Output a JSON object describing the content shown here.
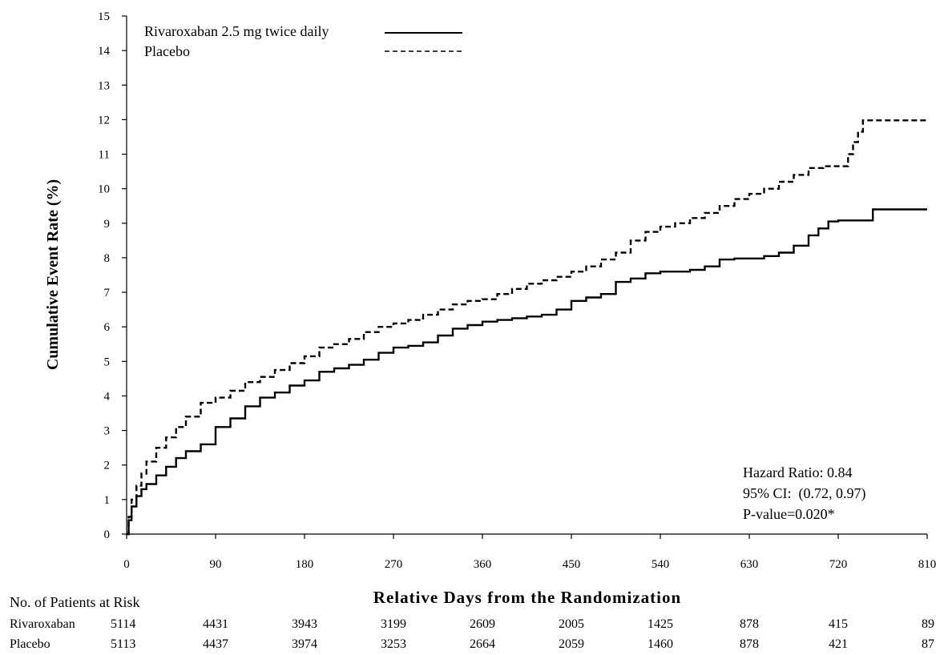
{
  "chart_data": {
    "type": "line",
    "title": "",
    "xlabel": "Relative Days from the Randomization",
    "ylabel": "Cumulative Event Rate (%)",
    "xlim": [
      0,
      810
    ],
    "ylim": [
      0,
      15
    ],
    "x_ticks": [
      0,
      90,
      180,
      270,
      360,
      450,
      540,
      630,
      720,
      810
    ],
    "y_ticks": [
      0,
      1,
      2,
      3,
      4,
      5,
      6,
      7,
      8,
      9,
      10,
      11,
      12,
      13,
      14,
      15
    ],
    "grid": false,
    "legend_position": "top-left",
    "series": [
      {
        "name": "Rivaroxaban 2.5 mg twice daily",
        "line_style": "solid",
        "color": "#000000",
        "x": [
          0,
          2,
          5,
          10,
          15,
          20,
          30,
          40,
          50,
          60,
          75,
          90,
          105,
          120,
          135,
          150,
          165,
          180,
          195,
          210,
          225,
          240,
          255,
          270,
          285,
          300,
          315,
          330,
          345,
          360,
          375,
          390,
          405,
          420,
          435,
          450,
          465,
          480,
          495,
          510,
          525,
          540,
          555,
          570,
          585,
          600,
          615,
          630,
          645,
          660,
          675,
          690,
          700,
          710,
          720,
          740,
          755,
          770,
          810
        ],
        "y": [
          0,
          0.4,
          0.8,
          1.1,
          1.3,
          1.45,
          1.7,
          1.95,
          2.2,
          2.4,
          2.6,
          3.1,
          3.35,
          3.7,
          3.95,
          4.1,
          4.3,
          4.45,
          4.7,
          4.8,
          4.9,
          5.05,
          5.25,
          5.4,
          5.45,
          5.55,
          5.75,
          5.95,
          6.05,
          6.15,
          6.2,
          6.25,
          6.3,
          6.35,
          6.5,
          6.75,
          6.85,
          6.95,
          7.3,
          7.4,
          7.55,
          7.6,
          7.6,
          7.65,
          7.75,
          7.95,
          7.98,
          7.98,
          8.05,
          8.15,
          8.35,
          8.65,
          8.85,
          9.05,
          9.08,
          9.08,
          9.4,
          9.4,
          9.4
        ]
      },
      {
        "name": "Placebo",
        "line_style": "dashed",
        "color": "#000000",
        "x": [
          0,
          2,
          5,
          10,
          15,
          20,
          30,
          40,
          50,
          60,
          75,
          90,
          105,
          120,
          135,
          150,
          165,
          180,
          195,
          210,
          225,
          240,
          255,
          270,
          285,
          300,
          315,
          330,
          345,
          360,
          375,
          390,
          405,
          420,
          435,
          450,
          465,
          480,
          495,
          510,
          525,
          540,
          555,
          570,
          585,
          600,
          615,
          630,
          645,
          660,
          675,
          690,
          705,
          720,
          730,
          735,
          740,
          745,
          760,
          810
        ],
        "y": [
          0,
          0.5,
          1.0,
          1.4,
          1.75,
          2.1,
          2.5,
          2.8,
          3.1,
          3.4,
          3.8,
          3.95,
          4.15,
          4.4,
          4.55,
          4.75,
          4.95,
          5.15,
          5.4,
          5.5,
          5.65,
          5.85,
          6.0,
          6.1,
          6.2,
          6.35,
          6.5,
          6.65,
          6.75,
          6.8,
          6.95,
          7.1,
          7.25,
          7.35,
          7.45,
          7.6,
          7.75,
          7.95,
          8.15,
          8.5,
          8.75,
          8.9,
          9.0,
          9.15,
          9.3,
          9.5,
          9.7,
          9.85,
          10.0,
          10.2,
          10.4,
          10.6,
          10.65,
          10.65,
          11.0,
          11.35,
          11.65,
          11.98,
          11.98,
          11.98
        ]
      }
    ],
    "annotations": [
      "Hazard Ratio: 0.84",
      "95% CI:  (0.72, 0.97)",
      "P-value=0.020*"
    ],
    "at_risk": {
      "title": "No. of Patients at Risk",
      "rows": [
        {
          "label": "Rivaroxaban",
          "values": [
            "5114",
            "4431",
            "3943",
            "3199",
            "2609",
            "2005",
            "1425",
            "878",
            "415",
            "89"
          ]
        },
        {
          "label": "Placebo",
          "values": [
            "5113",
            "4437",
            "3974",
            "3253",
            "2664",
            "2059",
            "1460",
            "878",
            "421",
            "87"
          ]
        }
      ]
    }
  }
}
